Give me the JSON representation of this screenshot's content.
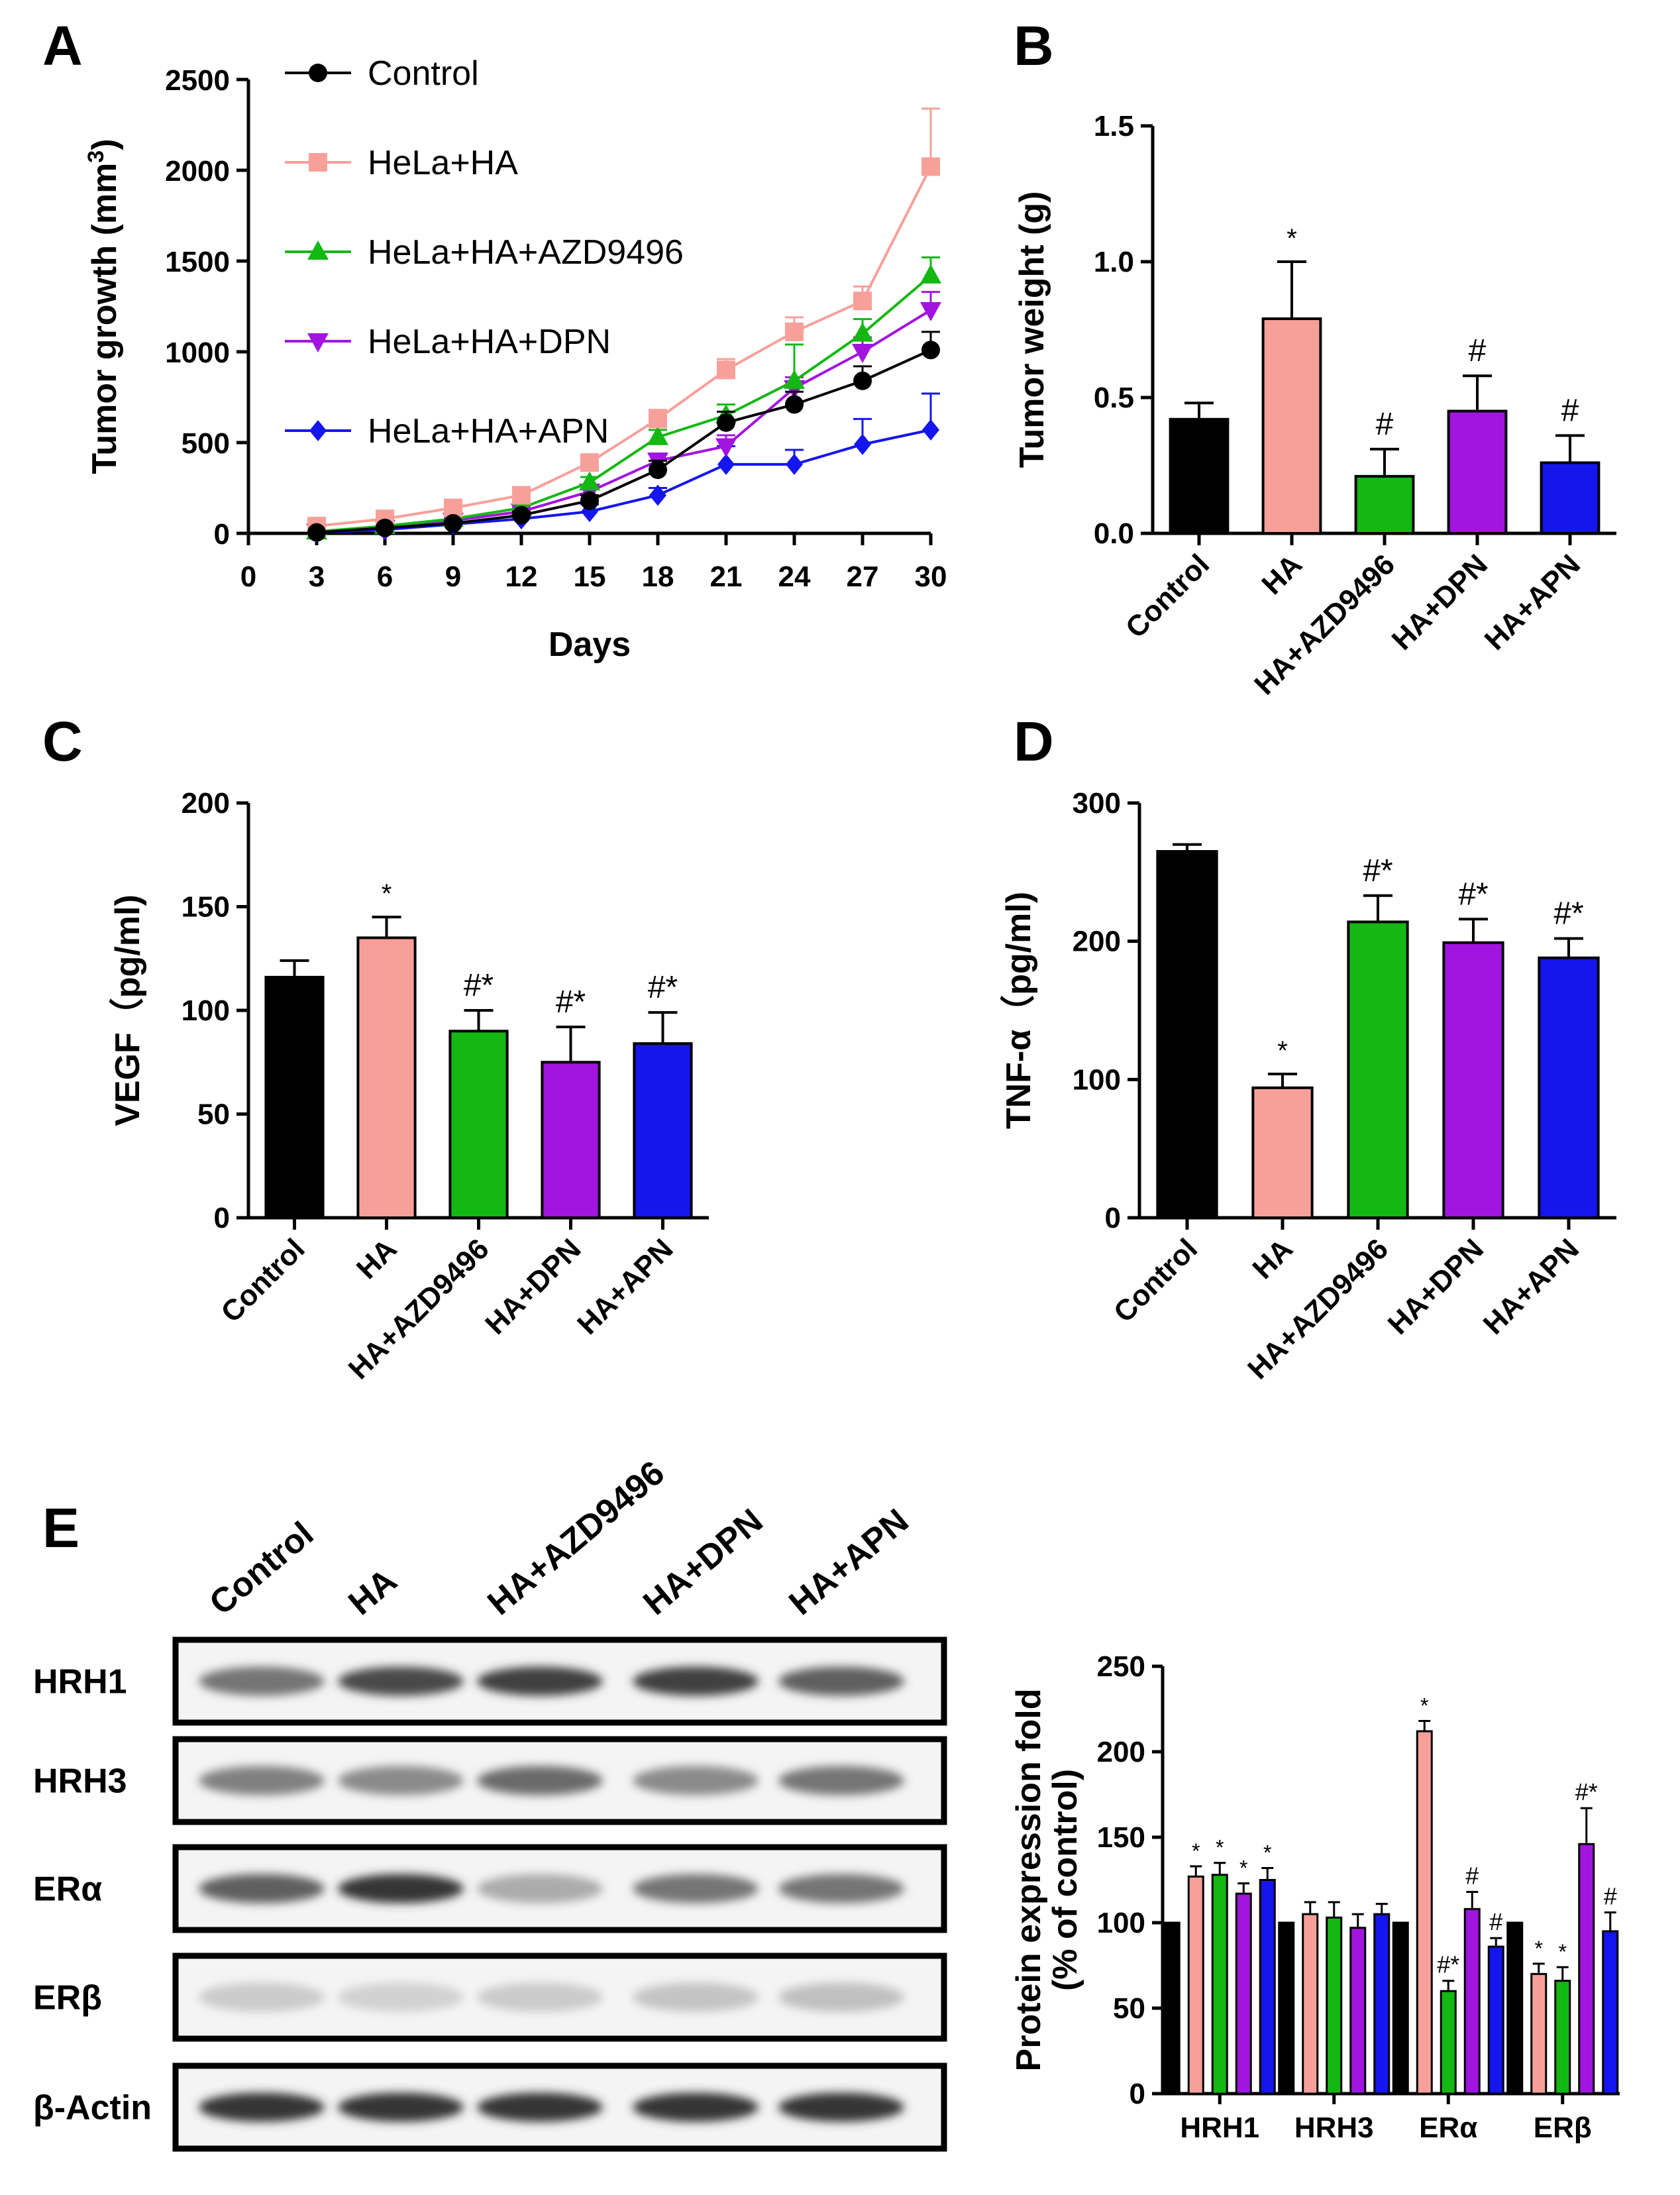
{
  "palette": {
    "Control": "#000000",
    "HA": "#f7a09a",
    "AZD": "#13b813",
    "DPN": "#a214e0",
    "APN": "#1515ee"
  },
  "chart_data": [
    {
      "panel": "A",
      "type": "line",
      "xlabel": "Days",
      "ylabel": "Tumor growth (mm3)",
      "xticks": [
        "0",
        "3",
        "6",
        "9",
        "12",
        "15",
        "18",
        "21",
        "24",
        "27",
        "30"
      ],
      "yticks": [
        "0",
        "500",
        "1000",
        "1500",
        "2000",
        "2500"
      ],
      "xlim": [
        0,
        30
      ],
      "ylim": [
        0,
        2500
      ],
      "x": [
        3,
        6,
        9,
        12,
        15,
        18,
        21,
        24,
        27,
        30
      ],
      "series": [
        {
          "name": "Control",
          "marker": "circle",
          "color": "#000000",
          "values": [
            5,
            30,
            55,
            100,
            180,
            350,
            610,
            710,
            840,
            1010
          ],
          "errors": [
            5,
            10,
            15,
            20,
            30,
            50,
            60,
            70,
            80,
            100
          ]
        },
        {
          "name": "HeLa+HA",
          "marker": "square",
          "color": "#f7a09a",
          "values": [
            40,
            80,
            140,
            210,
            390,
            630,
            900,
            1110,
            1280,
            2020
          ],
          "errors": [
            10,
            15,
            20,
            25,
            40,
            50,
            60,
            80,
            80,
            320
          ]
        },
        {
          "name": "HeLa+HA+AZD9496",
          "marker": "triangle-up",
          "color": "#13b813",
          "values": [
            10,
            40,
            80,
            140,
            280,
            530,
            650,
            840,
            1100,
            1420
          ],
          "errors": [
            5,
            10,
            15,
            20,
            30,
            40,
            60,
            200,
            80,
            100
          ]
        },
        {
          "name": "HeLa+HA+DPN",
          "marker": "triangle-down",
          "color": "#a214e0",
          "values": [
            10,
            30,
            70,
            120,
            230,
            400,
            480,
            800,
            1000,
            1230
          ],
          "errors": [
            5,
            10,
            15,
            20,
            30,
            40,
            60,
            60,
            80,
            100
          ]
        },
        {
          "name": "HeLa+HA+APN",
          "marker": "diamond",
          "color": "#1515ee",
          "values": [
            5,
            20,
            50,
            80,
            120,
            210,
            380,
            380,
            490,
            570
          ],
          "errors": [
            5,
            10,
            15,
            20,
            40,
            40,
            100,
            80,
            140,
            200
          ]
        }
      ]
    },
    {
      "panel": "B",
      "type": "bar",
      "ylabel": "Tumor weight (g)",
      "categories": [
        "Control",
        "HA",
        "HA+AZD9496",
        "HA+DPN",
        "HA+APN"
      ],
      "values": [
        0.42,
        0.79,
        0.21,
        0.45,
        0.26
      ],
      "errors": [
        0.06,
        0.21,
        0.1,
        0.13,
        0.1
      ],
      "annotations": [
        "",
        "*",
        "#",
        "#",
        "#"
      ],
      "ylim": [
        0,
        1.5
      ],
      "yticks": [
        "0.0",
        "0.5",
        "1.0",
        "1.5"
      ]
    },
    {
      "panel": "C",
      "type": "bar",
      "ylabel": "VEGF（pg/ml)",
      "categories": [
        "Control",
        "HA",
        "HA+AZD9496",
        "HA+DPN",
        "HA+APN"
      ],
      "values": [
        116,
        135,
        90,
        75,
        84
      ],
      "errors": [
        8,
        10,
        10,
        17,
        15
      ],
      "annotations": [
        "",
        "*",
        "#*",
        "#*",
        "#*"
      ],
      "ylim": [
        0,
        200
      ],
      "yticks": [
        "0",
        "50",
        "100",
        "150",
        "200"
      ]
    },
    {
      "panel": "D",
      "type": "bar",
      "ylabel": "TNF-α（pg/ml)",
      "categories": [
        "Control",
        "HA",
        "HA+AZD9496",
        "HA+DPN",
        "HA+APN"
      ],
      "values": [
        265,
        94,
        214,
        199,
        188
      ],
      "errors": [
        5,
        10,
        19,
        17,
        14
      ],
      "annotations": [
        "",
        "*",
        "#*",
        "#*",
        "#*"
      ],
      "ylim": [
        0,
        300
      ],
      "yticks": [
        "0",
        "100",
        "200",
        "300"
      ]
    },
    {
      "panel": "E",
      "type": "bar",
      "ylabel": "Protein expression fold",
      "ylabel2": "(% of control)",
      "categories": [
        "HRH1",
        "HRH3",
        "ERα",
        "ERβ"
      ],
      "series": [
        {
          "name": "Control",
          "values": [
            100,
            100,
            100,
            100
          ],
          "errors": [
            0,
            0,
            0,
            0
          ],
          "annotations": [
            "",
            "",
            "",
            ""
          ]
        },
        {
          "name": "HA",
          "values": [
            127,
            105,
            212,
            70
          ],
          "errors": [
            6,
            7,
            6,
            6
          ],
          "annotations": [
            "*",
            "",
            "*",
            "*"
          ]
        },
        {
          "name": "HA+AZD9496",
          "values": [
            128,
            103,
            60,
            66
          ],
          "errors": [
            7,
            9,
            6,
            8
          ],
          "annotations": [
            "*",
            "",
            "#*",
            "*"
          ]
        },
        {
          "name": "HA+DPN",
          "values": [
            117,
            97,
            108,
            146
          ],
          "errors": [
            6,
            8,
            10,
            21
          ],
          "annotations": [
            "*",
            "",
            "#",
            "#*"
          ]
        },
        {
          "name": "HA+APN",
          "values": [
            125,
            105,
            86,
            95
          ],
          "errors": [
            7,
            6,
            5,
            11
          ],
          "annotations": [
            "*",
            "",
            "#",
            "#"
          ]
        }
      ],
      "ylim": [
        0,
        250
      ],
      "yticks": [
        "0",
        "50",
        "100",
        "150",
        "200",
        "250"
      ]
    }
  ],
  "panel_labels": [
    "A",
    "B",
    "C",
    "D",
    "E"
  ],
  "blot": {
    "lanes": [
      "Control",
      "HA",
      "HA+AZD9496",
      "HA+DPN",
      "HA+APN"
    ],
    "rows": [
      {
        "name": "HRH1",
        "intensity": [
          0.55,
          0.75,
          0.8,
          0.8,
          0.65
        ]
      },
      {
        "name": "HRH3",
        "intensity": [
          0.5,
          0.45,
          0.6,
          0.45,
          0.55
        ]
      },
      {
        "name": "ERα",
        "intensity": [
          0.65,
          0.85,
          0.3,
          0.55,
          0.55
        ]
      },
      {
        "name": "ERβ",
        "intensity": [
          0.15,
          0.12,
          0.15,
          0.18,
          0.2
        ]
      },
      {
        "name": "β-Actin",
        "intensity": [
          0.85,
          0.85,
          0.85,
          0.85,
          0.85
        ]
      }
    ]
  }
}
